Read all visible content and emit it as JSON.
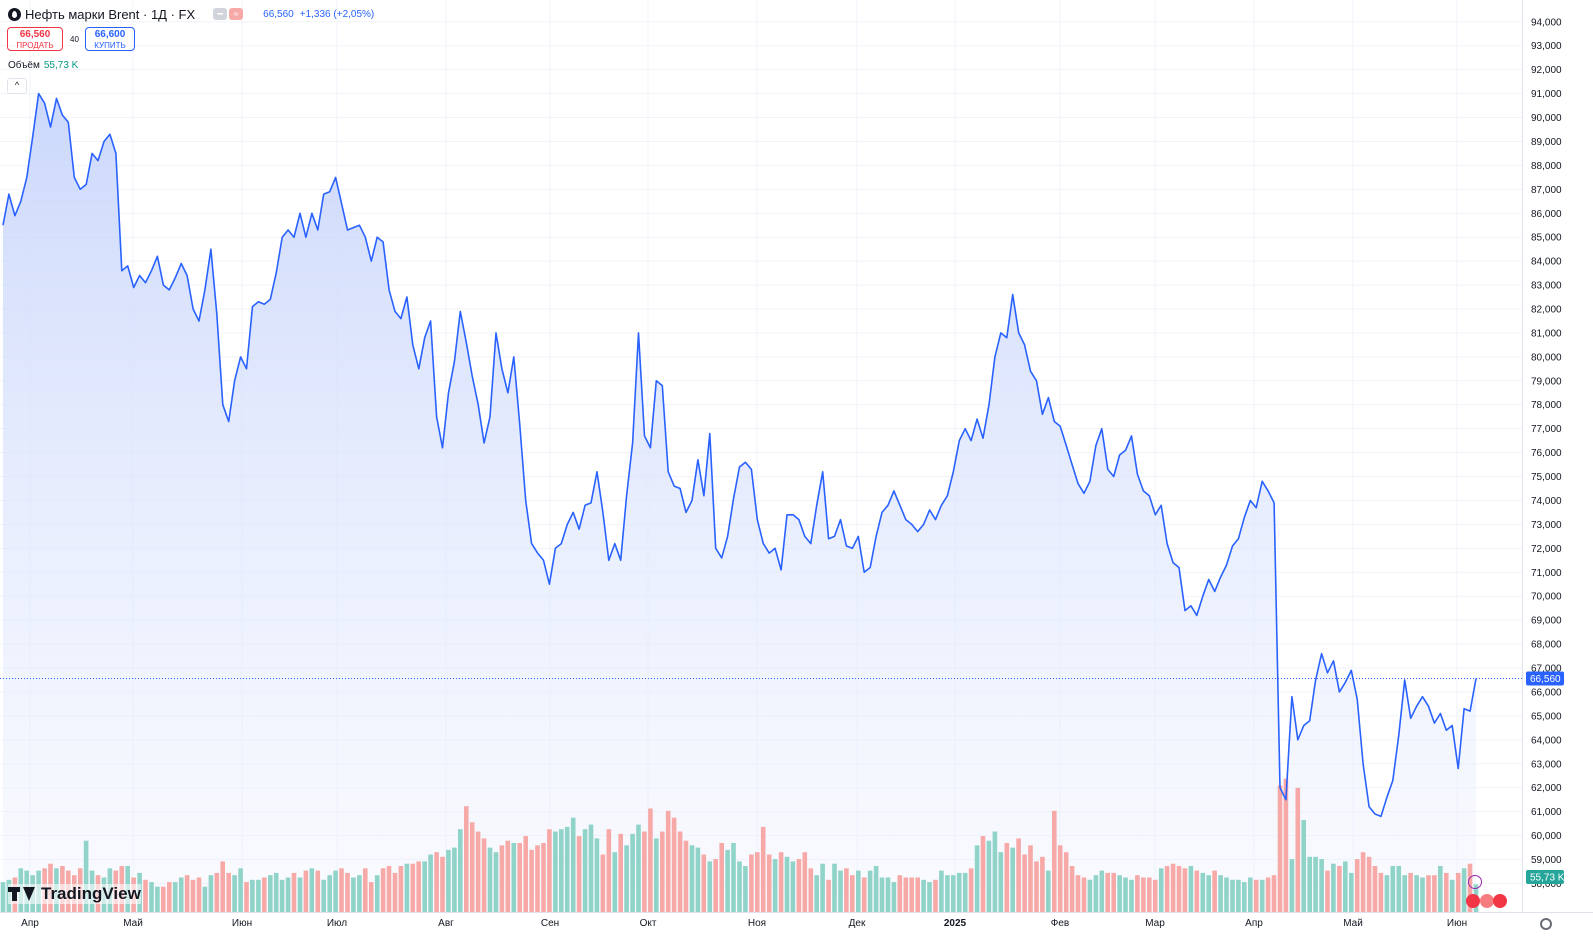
{
  "header": {
    "title": "Нефть марки Brent · 1Д · FX",
    "last": "66,560",
    "change": "+1,336 (+2,05%)"
  },
  "trade": {
    "sell_price": "66,560",
    "sell_label": "ПРОДАТЬ",
    "buy_price": "66,600",
    "buy_label": "КУПИТЬ",
    "spread": "40"
  },
  "volume": {
    "label": "Объём",
    "value": "55,73 K"
  },
  "logo": "TradingView",
  "colors": {
    "line": "#2962ff",
    "area_top": "#c9d6fb",
    "vol_up": "#8fd3c9",
    "vol_down": "#f7a9a7",
    "grid": "#f0f3fa",
    "axis_text": "#131722"
  },
  "chart_data": {
    "type": "area",
    "title": "Нефть марки Brent · 1Д · FX",
    "ylim": [
      57.6,
      94.2
    ],
    "y_ticks": [
      "94,000",
      "93,000",
      "92,000",
      "91,000",
      "90,000",
      "89,000",
      "88,000",
      "87,000",
      "86,000",
      "85,000",
      "84,000",
      "83,000",
      "82,000",
      "81,000",
      "80,000",
      "79,000",
      "78,000",
      "77,000",
      "76,000",
      "75,000",
      "74,000",
      "73,000",
      "72,000",
      "71,000",
      "70,000",
      "69,000",
      "68,000",
      "67,000",
      "66,000",
      "65,000",
      "64,000",
      "63,000",
      "62,000",
      "61,000",
      "60,000",
      "59,000",
      "58,000"
    ],
    "x_ticks": [
      "Апр",
      "Май",
      "Июн",
      "Июл",
      "Авг",
      "Сен",
      "Окт",
      "Ноя",
      "Дек",
      "2025",
      "Фев",
      "Мар",
      "Апр",
      "Май",
      "Июн"
    ],
    "last_price_label": "66,560",
    "last_price": 66.56,
    "last_volume_label": "55,73 K",
    "grid": true,
    "series": [
      {
        "name": "Нефть марки Brent",
        "values": [
          85.5,
          86.8,
          85.9,
          86.5,
          87.5,
          89.2,
          91.0,
          90.6,
          89.6,
          90.8,
          90.1,
          89.8,
          87.5,
          87.0,
          87.2,
          88.5,
          88.2,
          89.0,
          89.3,
          88.5,
          83.6,
          83.8,
          82.9,
          83.4,
          83.1,
          83.6,
          84.2,
          83.0,
          82.8,
          83.3,
          83.9,
          83.4,
          82.0,
          81.5,
          82.8,
          84.5,
          81.8,
          78.0,
          77.3,
          79.0,
          80.0,
          79.5,
          82.1,
          82.3,
          82.2,
          82.4,
          83.5,
          85.0,
          85.3,
          85.0,
          86.0,
          85.0,
          86.0,
          85.3,
          86.8,
          86.9,
          87.5,
          86.4,
          85.3,
          85.4,
          85.5,
          85.0,
          84.0,
          85.0,
          84.8,
          82.8,
          81.9,
          81.6,
          82.5,
          80.5,
          79.5,
          80.8,
          81.5,
          77.5,
          76.2,
          78.5,
          79.8,
          81.9,
          80.6,
          79.2,
          78.0,
          76.4,
          77.5,
          81.0,
          79.5,
          78.5,
          80.0,
          77.2,
          74.0,
          72.2,
          71.8,
          71.5,
          70.5,
          72.0,
          72.2,
          73.0,
          73.5,
          72.8,
          73.8,
          73.9,
          75.2,
          73.5,
          71.5,
          72.2,
          71.5,
          74.2,
          76.4,
          81.0,
          76.7,
          76.2,
          79.0,
          78.8,
          75.2,
          74.6,
          74.5,
          73.5,
          74.0,
          75.7,
          74.2,
          76.8,
          72.0,
          71.6,
          72.5,
          74.1,
          75.4,
          75.6,
          75.3,
          73.2,
          72.2,
          71.8,
          72.0,
          71.1,
          73.4,
          73.4,
          73.2,
          72.5,
          72.2,
          73.8,
          75.2,
          72.4,
          72.5,
          73.2,
          72.1,
          72.0,
          72.5,
          71.0,
          71.2,
          72.5,
          73.5,
          73.8,
          74.4,
          73.8,
          73.2,
          73.0,
          72.7,
          73.0,
          73.6,
          73.2,
          73.8,
          74.2,
          75.2,
          76.5,
          77.0,
          76.5,
          77.4,
          76.6,
          78.0,
          80.0,
          81.0,
          80.8,
          82.6,
          81.0,
          80.5,
          79.4,
          79.0,
          77.6,
          78.3,
          77.3,
          77.1,
          76.3,
          75.5,
          74.7,
          74.3,
          74.8,
          76.3,
          77.0,
          75.3,
          75.0,
          75.9,
          76.1,
          76.7,
          75.1,
          74.4,
          74.2,
          73.4,
          73.8,
          72.2,
          71.4,
          71.2,
          69.4,
          69.6,
          69.2,
          70.0,
          70.7,
          70.2,
          70.8,
          71.3,
          72.1,
          72.4,
          73.3,
          74.0,
          73.7,
          74.8,
          74.4,
          73.9,
          62.0,
          61.5,
          65.8,
          64.0,
          64.6,
          64.8,
          66.5,
          67.6,
          66.8,
          67.3,
          66.0,
          66.4,
          66.9,
          65.7,
          63.0,
          61.2,
          60.9,
          60.8,
          61.6,
          62.3,
          64.2,
          66.5,
          64.9,
          65.4,
          65.8,
          65.4,
          64.7,
          65.1,
          64.4,
          64.6,
          62.8,
          65.3,
          65.2,
          66.56
        ]
      },
      {
        "name": "Объём",
        "values": [
          1.3,
          1.4,
          1.5,
          1.9,
          1.8,
          1.6,
          1.8,
          1.9,
          2.1,
          1.9,
          2.0,
          1.8,
          1.6,
          1.9,
          3.1,
          1.8,
          1.6,
          1.5,
          1.9,
          1.8,
          2.0,
          2.0,
          1.5,
          1.7,
          1.4,
          1.3,
          1.1,
          1.1,
          1.3,
          1.3,
          1.5,
          1.6,
          1.4,
          1.5,
          1.1,
          1.6,
          1.7,
          2.2,
          1.7,
          1.6,
          1.9,
          1.3,
          1.4,
          1.4,
          1.5,
          1.6,
          1.7,
          1.4,
          1.5,
          1.7,
          1.5,
          1.8,
          1.9,
          1.8,
          1.4,
          1.6,
          1.8,
          1.9,
          1.7,
          1.5,
          1.6,
          1.9,
          1.3,
          1.6,
          1.9,
          2.0,
          1.7,
          2.0,
          2.1,
          2.1,
          2.2,
          2.2,
          2.5,
          2.6,
          2.4,
          2.7,
          2.8,
          3.6,
          4.6,
          3.9,
          3.5,
          3.2,
          2.8,
          2.6,
          2.9,
          3.1,
          3.0,
          3.0,
          3.3,
          2.7,
          2.9,
          3.0,
          3.6,
          3.5,
          3.6,
          3.7,
          4.1,
          3.3,
          3.6,
          3.8,
          3.2,
          2.5,
          3.6,
          2.6,
          3.4,
          2.9,
          3.4,
          3.8,
          3.5,
          4.5,
          3.2,
          3.5,
          4.4,
          4.1,
          3.5,
          3.1,
          2.9,
          2.8,
          2.5,
          2.2,
          2.3,
          3.0,
          2.7,
          3.0,
          2.2,
          2.0,
          2.5,
          2.6,
          3.7,
          2.5,
          2.3,
          2.6,
          2.4,
          2.2,
          2.3,
          2.6,
          1.9,
          1.6,
          2.1,
          1.4,
          2.1,
          1.8,
          1.9,
          1.6,
          1.8,
          1.5,
          1.8,
          2.0,
          1.5,
          1.5,
          1.3,
          1.6,
          1.5,
          1.5,
          1.5,
          1.4,
          1.3,
          1.4,
          1.8,
          1.6,
          1.6,
          1.7,
          1.7,
          1.9,
          2.9,
          3.3,
          3.1,
          3.5,
          2.6,
          3.0,
          2.8,
          3.2,
          2.5,
          2.9,
          2.2,
          2.4,
          1.8,
          4.4,
          2.9,
          2.6,
          2.0,
          1.6,
          1.5,
          1.4,
          1.6,
          1.8,
          1.7,
          1.7,
          1.6,
          1.5,
          1.4,
          1.6,
          1.5,
          1.5,
          1.4,
          1.9,
          2.0,
          2.1,
          2.0,
          1.9,
          2.0,
          1.8,
          1.7,
          1.6,
          1.8,
          1.6,
          1.5,
          1.4,
          1.4,
          1.3,
          1.5,
          1.4,
          1.4,
          1.5,
          1.6,
          5.5,
          5.8,
          2.3,
          5.4,
          4.0,
          2.4,
          2.4,
          2.3,
          1.8,
          2.1,
          2.0,
          2.2,
          1.7,
          2.3,
          2.6,
          2.4,
          2.0,
          1.7,
          1.6,
          2.0,
          2.0,
          1.6,
          1.7,
          1.6,
          1.5,
          1.6,
          1.6,
          2.0,
          1.7,
          1.4,
          1.7,
          1.9,
          2.1,
          1.2
        ]
      }
    ]
  }
}
